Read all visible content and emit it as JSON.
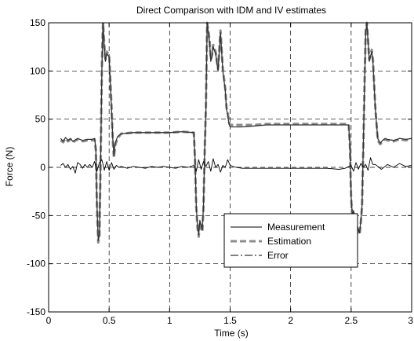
{
  "chart_data": {
    "type": "line",
    "title": "Direct Comparison with IDM and IV estimates",
    "xlabel": "Time (s)",
    "ylabel": "Force (N)",
    "xlim": [
      0,
      3
    ],
    "ylim": [
      -150,
      150
    ],
    "x_ticks": [
      0,
      0.5,
      1,
      1.5,
      2,
      2.5,
      3
    ],
    "x_tick_labels": [
      "0",
      "0.5",
      "1",
      "1.5",
      "2",
      "2.5",
      "3"
    ],
    "y_ticks": [
      -150,
      -100,
      -50,
      0,
      50,
      100,
      150
    ],
    "y_tick_labels": [
      "-150",
      "-100",
      "-50",
      "0",
      "50",
      "100",
      "150"
    ],
    "grid": true,
    "grid_style": "dashed",
    "legend_position": "lower-right",
    "series": [
      {
        "name": "Measurement",
        "color": "#333333",
        "style": "solid",
        "x": [
          0.1,
          0.12,
          0.14,
          0.16,
          0.18,
          0.2,
          0.24,
          0.28,
          0.32,
          0.36,
          0.38,
          0.39,
          0.4,
          0.41,
          0.42,
          0.43,
          0.44,
          0.445,
          0.45,
          0.46,
          0.47,
          0.48,
          0.5,
          0.52,
          0.53,
          0.54,
          0.55,
          0.57,
          0.6,
          0.7,
          0.8,
          0.9,
          1.0,
          1.1,
          1.2,
          1.21,
          1.22,
          1.23,
          1.24,
          1.25,
          1.26,
          1.27,
          1.28,
          1.29,
          1.3,
          1.31,
          1.32,
          1.33,
          1.34,
          1.35,
          1.36,
          1.38,
          1.4,
          1.42,
          1.44,
          1.46,
          1.47,
          1.48,
          1.49,
          1.5,
          1.52,
          1.6,
          1.7,
          1.8,
          1.9,
          2.0,
          2.1,
          2.2,
          2.3,
          2.4,
          2.48,
          2.49,
          2.5,
          2.51,
          2.52,
          2.53,
          2.54,
          2.55,
          2.56,
          2.57,
          2.58,
          2.59,
          2.6,
          2.61,
          2.62,
          2.63,
          2.64,
          2.65,
          2.66,
          2.67,
          2.68,
          2.7,
          2.72,
          2.74,
          2.76,
          2.78,
          2.8,
          2.85,
          2.9,
          2.95,
          3.0
        ],
        "y": [
          30,
          27,
          31,
          28,
          30,
          27,
          30,
          28,
          29,
          29,
          30,
          20,
          -40,
          -76,
          -70,
          10,
          100,
          130,
          150,
          125,
          110,
          118,
          115,
          60,
          30,
          12,
          25,
          32,
          35,
          36,
          36,
          36,
          36,
          37,
          36,
          10,
          -40,
          -60,
          -70,
          -55,
          -60,
          -65,
          -40,
          20,
          60,
          150,
          140,
          130,
          110,
          115,
          125,
          118,
          100,
          140,
          100,
          80,
          60,
          55,
          45,
          42,
          42,
          42,
          43,
          44,
          44,
          44,
          44,
          44,
          44,
          44,
          44,
          20,
          -30,
          -50,
          -45,
          -55,
          -65,
          -60,
          -65,
          -68,
          -55,
          -40,
          20,
          80,
          140,
          150,
          130,
          110,
          115,
          120,
          110,
          60,
          30,
          25,
          28,
          30,
          29,
          28,
          30,
          29,
          30
        ]
      },
      {
        "name": "Estimation",
        "color": "#8c8c8c",
        "style": "dashed",
        "x": [
          0.1,
          0.12,
          0.14,
          0.16,
          0.18,
          0.2,
          0.24,
          0.28,
          0.32,
          0.36,
          0.38,
          0.39,
          0.4,
          0.41,
          0.42,
          0.43,
          0.44,
          0.445,
          0.45,
          0.46,
          0.47,
          0.48,
          0.5,
          0.52,
          0.53,
          0.54,
          0.55,
          0.57,
          0.6,
          0.7,
          0.8,
          0.9,
          1.0,
          1.1,
          1.2,
          1.21,
          1.22,
          1.23,
          1.24,
          1.25,
          1.26,
          1.27,
          1.28,
          1.29,
          1.3,
          1.31,
          1.32,
          1.33,
          1.34,
          1.35,
          1.36,
          1.38,
          1.4,
          1.42,
          1.44,
          1.46,
          1.47,
          1.48,
          1.49,
          1.5,
          1.52,
          1.6,
          1.7,
          1.8,
          1.9,
          2.0,
          2.1,
          2.2,
          2.3,
          2.4,
          2.48,
          2.49,
          2.5,
          2.51,
          2.52,
          2.53,
          2.54,
          2.55,
          2.56,
          2.57,
          2.58,
          2.59,
          2.6,
          2.61,
          2.62,
          2.63,
          2.64,
          2.65,
          2.66,
          2.67,
          2.68,
          2.7,
          2.72,
          2.74,
          2.76,
          2.78,
          2.8,
          2.85,
          2.9,
          2.95,
          3.0
        ],
        "y": [
          28,
          26,
          30,
          27,
          29,
          26,
          29,
          27,
          28,
          28,
          29,
          18,
          -42,
          -78,
          -72,
          8,
          102,
          132,
          150,
          127,
          112,
          120,
          117,
          62,
          28,
          10,
          23,
          30,
          35,
          36,
          36,
          36,
          36,
          37,
          36,
          8,
          -42,
          -62,
          -72,
          -57,
          -62,
          -67,
          -42,
          18,
          62,
          150,
          142,
          132,
          112,
          117,
          127,
          120,
          102,
          142,
          102,
          82,
          62,
          57,
          47,
          44,
          44,
          44,
          44,
          45,
          45,
          45,
          45,
          45,
          45,
          45,
          45,
          22,
          -32,
          -52,
          -47,
          -57,
          -67,
          -62,
          -67,
          -70,
          -57,
          -42,
          18,
          82,
          142,
          150,
          132,
          112,
          117,
          122,
          112,
          62,
          28,
          24,
          27,
          29,
          28,
          27,
          29,
          28,
          29
        ]
      },
      {
        "name": "Error",
        "color": "#000000",
        "style": "dash-dot",
        "x": [
          0.1,
          0.12,
          0.14,
          0.16,
          0.18,
          0.2,
          0.22,
          0.24,
          0.26,
          0.28,
          0.3,
          0.32,
          0.34,
          0.36,
          0.38,
          0.4,
          0.42,
          0.44,
          0.45,
          0.46,
          0.48,
          0.5,
          0.52,
          0.54,
          0.56,
          0.58,
          0.6,
          0.65,
          0.7,
          0.75,
          0.8,
          0.85,
          0.9,
          0.95,
          1.0,
          1.05,
          1.1,
          1.15,
          1.2,
          1.22,
          1.24,
          1.26,
          1.28,
          1.3,
          1.32,
          1.34,
          1.36,
          1.38,
          1.4,
          1.42,
          1.44,
          1.46,
          1.48,
          1.5,
          1.55,
          1.6,
          1.7,
          1.8,
          1.9,
          2.0,
          2.1,
          2.2,
          2.3,
          2.4,
          2.45,
          2.5,
          2.52,
          2.54,
          2.56,
          2.58,
          2.6,
          2.62,
          2.64,
          2.66,
          2.68,
          2.7,
          2.75,
          2.8,
          2.85,
          2.9,
          2.95,
          3.0
        ],
        "y": [
          2,
          4,
          0,
          3,
          -2,
          1,
          -6,
          5,
          3,
          -1,
          3,
          0,
          3,
          0,
          6,
          -4,
          5,
          8,
          3,
          -3,
          6,
          -3,
          5,
          -2,
          2,
          0,
          1,
          -1,
          1,
          0,
          -1,
          1,
          0,
          1,
          0,
          -1,
          1,
          0,
          2,
          -4,
          8,
          -2,
          6,
          1,
          6,
          -4,
          9,
          0,
          3,
          -5,
          2,
          0,
          8,
          2,
          0,
          -1,
          -1,
          -1,
          -1,
          -1,
          -1,
          -1,
          -1,
          -2,
          -1,
          2,
          -4,
          5,
          -2,
          4,
          0,
          3,
          -3,
          10,
          3,
          3,
          -2,
          3,
          0,
          4,
          1,
          2
        ]
      }
    ]
  }
}
